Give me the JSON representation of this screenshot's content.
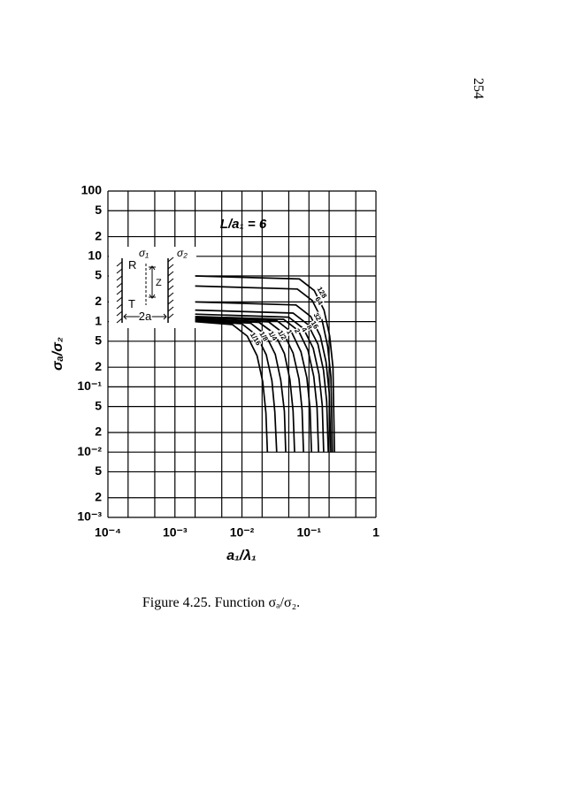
{
  "page_number": "254",
  "caption": "Figure 4.25. Function σₐ/σ₂.",
  "inset": {
    "sigma1": "σ₁",
    "sigma2": "σ₂",
    "r": "R",
    "t": "T",
    "z": "Z",
    "width": "2a"
  },
  "chart_data": {
    "type": "line",
    "color": "#000",
    "log_x": true,
    "log_y": true,
    "grid": true,
    "annotation": "L/a₁ = 6",
    "x_label": "a₁/λ₁",
    "y_label": "σₐ/σ₂",
    "xlim": [
      0.0001,
      1
    ],
    "ylim": [
      0.001,
      100
    ],
    "xticks": [
      {
        "value": 0.0001,
        "label": "10⁻⁴"
      },
      {
        "value": 0.001,
        "label": "10⁻³"
      },
      {
        "value": 0.01,
        "label": "10⁻²"
      },
      {
        "value": 0.1,
        "label": "10⁻¹"
      },
      1
    ],
    "xgrid": [
      0.0002,
      0.0005,
      0.002,
      0.005,
      0.02,
      0.05,
      0.2,
      0.5
    ],
    "yticks": [
      100,
      {
        "value": 50,
        "label": "5"
      },
      {
        "value": 20,
        "label": "2"
      },
      10,
      5,
      2,
      1,
      {
        "value": 0.5,
        "label": "5"
      },
      {
        "value": 0.2,
        "label": "2"
      },
      {
        "value": 0.1,
        "label": "10⁻¹"
      },
      {
        "value": 0.05,
        "label": "5"
      },
      {
        "value": 0.02,
        "label": "2"
      },
      {
        "value": 0.01,
        "label": "10⁻²"
      },
      {
        "value": 0.005,
        "label": "5"
      },
      {
        "value": 0.002,
        "label": "2"
      },
      {
        "value": 0.001,
        "label": "10⁻³"
      }
    ],
    "series": [
      {
        "name": "128",
        "x": [
          0.002,
          0.072,
          0.12,
          0.168,
          0.204,
          0.228,
          0.24
        ],
        "values": [
          5,
          4.5,
          3,
          1.5,
          0.6,
          0.2,
          0.01
        ]
      },
      {
        "name": "64",
        "x": [
          0.002,
          0.067,
          0.112,
          0.157,
          0.19,
          0.213,
          0.224
        ],
        "values": [
          3.5,
          3.15,
          2.1,
          1.05,
          0.42,
          0.14,
          0.01
        ]
      },
      {
        "name": "32",
        "x": [
          0.002,
          0.064,
          0.106,
          0.148,
          0.18,
          0.201,
          0.212
        ],
        "values": [
          2,
          1.8,
          1.2,
          0.6,
          0.24,
          0.08,
          0.01
        ]
      },
      {
        "name": "16",
        "x": [
          0.002,
          0.058,
          0.097,
          0.136,
          0.165,
          0.184,
          0.194
        ],
        "values": [
          1.5,
          1.35,
          0.9,
          0.45,
          0.18,
          0.06,
          0.01
        ]
      },
      {
        "name": "8",
        "x": [
          0.002,
          0.05,
          0.083,
          0.116,
          0.141,
          0.158,
          0.166
        ],
        "values": [
          1.3,
          1.17,
          0.78,
          0.39,
          0.156,
          0.052,
          0.01
        ]
      },
      {
        "name": "4",
        "x": [
          0.002,
          0.042,
          0.07,
          0.097,
          0.118,
          0.132,
          0.139
        ],
        "values": [
          1.2,
          1.08,
          0.72,
          0.36,
          0.144,
          0.048,
          0.01
        ]
      },
      {
        "name": "2",
        "x": [
          0.002,
          0.033,
          0.055,
          0.076,
          0.093,
          0.104,
          0.109
        ],
        "values": [
          1.15,
          1.035,
          0.69,
          0.345,
          0.138,
          0.046,
          0.01
        ]
      },
      {
        "name": "1",
        "x": [
          0.002,
          0.025,
          0.042,
          0.058,
          0.071,
          0.079,
          0.083
        ],
        "values": [
          1.1,
          0.99,
          0.66,
          0.33,
          0.132,
          0.044,
          0.01
        ]
      },
      {
        "name": "1/2",
        "x": [
          0.002,
          0.018,
          0.031,
          0.043,
          0.052,
          0.058,
          0.061
        ],
        "values": [
          1.08,
          0.972,
          0.648,
          0.324,
          0.13,
          0.043,
          0.01
        ]
      },
      {
        "name": "1/4",
        "x": [
          0.002,
          0.0135,
          0.0225,
          0.0315,
          0.038,
          0.043,
          0.045
        ],
        "values": [
          1.05,
          0.945,
          0.63,
          0.315,
          0.126,
          0.042,
          0.01
        ]
      },
      {
        "name": "1/8",
        "x": [
          0.002,
          0.0099,
          0.0165,
          0.0231,
          0.028,
          0.031,
          0.033
        ],
        "values": [
          1.03,
          0.927,
          0.618,
          0.309,
          0.124,
          0.041,
          0.01
        ]
      },
      {
        "name": "1/16",
        "x": [
          0.002,
          0.0072,
          0.012,
          0.0168,
          0.0204,
          0.0228,
          0.024
        ],
        "values": [
          1,
          0.9,
          0.6,
          0.3,
          0.12,
          0.04,
          0.01
        ]
      }
    ]
  }
}
